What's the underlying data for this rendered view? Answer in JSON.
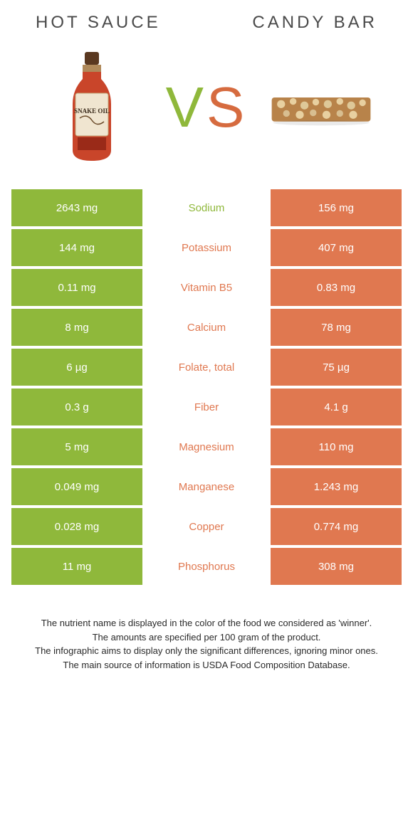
{
  "header": {
    "left": "HOT SAUCE",
    "right": "CANDY BAR"
  },
  "vs": {
    "v": "V",
    "s": "S"
  },
  "colors": {
    "left": "#8fb83b",
    "right": "#e07850",
    "header_text": "#4a4a4a",
    "vs_green": "#8fb83b",
    "vs_orange": "#d66b3f"
  },
  "rows": [
    {
      "left": "2643 mg",
      "label": "Sodium",
      "right": "156 mg",
      "winner": "left"
    },
    {
      "left": "144 mg",
      "label": "Potassium",
      "right": "407 mg",
      "winner": "right"
    },
    {
      "left": "0.11 mg",
      "label": "Vitamin B5",
      "right": "0.83 mg",
      "winner": "right"
    },
    {
      "left": "8 mg",
      "label": "Calcium",
      "right": "78 mg",
      "winner": "right"
    },
    {
      "left": "6 µg",
      "label": "Folate, total",
      "right": "75 µg",
      "winner": "right"
    },
    {
      "left": "0.3 g",
      "label": "Fiber",
      "right": "4.1 g",
      "winner": "right"
    },
    {
      "left": "5 mg",
      "label": "Magnesium",
      "right": "110 mg",
      "winner": "right"
    },
    {
      "left": "0.049 mg",
      "label": "Manganese",
      "right": "1.243 mg",
      "winner": "right"
    },
    {
      "left": "0.028 mg",
      "label": "Copper",
      "right": "0.774 mg",
      "winner": "right"
    },
    {
      "left": "11 mg",
      "label": "Phosphorus",
      "right": "308 mg",
      "winner": "right"
    }
  ],
  "footer": {
    "l1": "The nutrient name is displayed in the color of the food we considered as 'winner'.",
    "l2": "The amounts are specified per 100 gram of the product.",
    "l3": "The infographic aims to display only the significant differences, ignoring minor ones.",
    "l4": "The main source of information is USDA Food Composition Database."
  }
}
